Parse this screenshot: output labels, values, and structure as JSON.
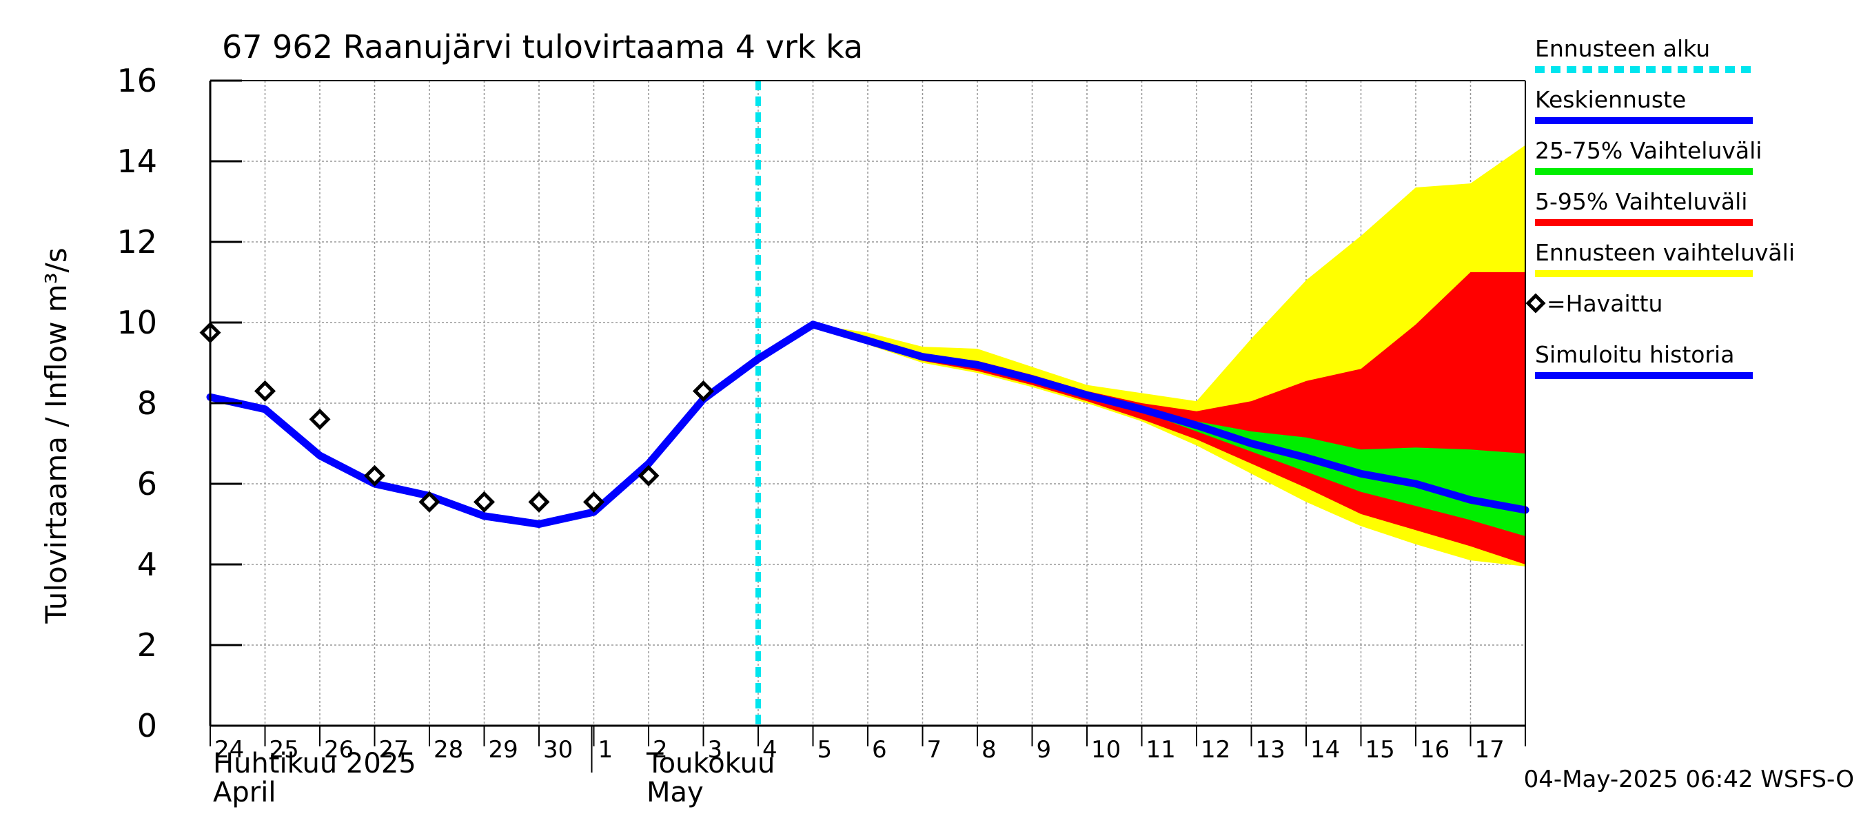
{
  "chart_data": {
    "type": "area",
    "title": "67 962 Raanujärvi tulovirtaama 4 vrk ka",
    "ylabel": "Tulovirtaama / Inflow   m³/s",
    "ylim": [
      0,
      16
    ],
    "yticks": [
      0,
      2,
      4,
      6,
      8,
      10,
      12,
      14,
      16
    ],
    "x_day_labels": [
      "24",
      "25",
      "26",
      "27",
      "28",
      "29",
      "30",
      "1",
      "2",
      "3",
      "4",
      "5",
      "6",
      "7",
      "8",
      "9",
      "10",
      "11",
      "12",
      "13",
      "14",
      "15",
      "16",
      "17"
    ],
    "month_labels": [
      {
        "line1": "Huhtikuu  2025",
        "line2": "April"
      },
      {
        "line1": "Toukokuu",
        "line2": "May"
      }
    ],
    "forecast_start_day_index": 10,
    "observed": [
      {
        "d": 0,
        "v": 9.75
      },
      {
        "d": 1,
        "v": 8.3
      },
      {
        "d": 2,
        "v": 7.6
      },
      {
        "d": 3,
        "v": 6.2
      },
      {
        "d": 4,
        "v": 5.55
      },
      {
        "d": 5,
        "v": 5.55
      },
      {
        "d": 6,
        "v": 5.55
      },
      {
        "d": 7,
        "v": 5.55
      },
      {
        "d": 8,
        "v": 6.2
      },
      {
        "d": 9,
        "v": 8.3
      }
    ],
    "simulated_history": [
      {
        "d": 0,
        "v": 8.15
      },
      {
        "d": 1,
        "v": 7.85
      },
      {
        "d": 2,
        "v": 6.7
      },
      {
        "d": 3,
        "v": 6.0
      },
      {
        "d": 4,
        "v": 5.7
      },
      {
        "d": 5,
        "v": 5.2
      },
      {
        "d": 6,
        "v": 5.0
      },
      {
        "d": 7,
        "v": 5.3
      },
      {
        "d": 8,
        "v": 6.5
      },
      {
        "d": 9,
        "v": 8.1
      },
      {
        "d": 10,
        "v": 9.1
      },
      {
        "d": 11,
        "v": 9.95
      }
    ],
    "forecast_days": [
      11,
      12,
      13,
      14,
      15,
      16,
      17,
      18,
      19,
      20,
      21,
      22,
      23,
      24
    ],
    "median_forecast": [
      9.95,
      9.55,
      9.15,
      8.95,
      8.6,
      8.2,
      7.85,
      7.45,
      7.0,
      6.65,
      6.25,
      6.0,
      5.6,
      5.35
    ],
    "range_full": {
      "low": [
        9.95,
        9.45,
        9.0,
        8.75,
        8.4,
        8.0,
        7.55,
        6.95,
        6.25,
        5.55,
        4.95,
        4.5,
        4.1,
        3.95
      ],
      "high": [
        9.95,
        9.75,
        9.4,
        9.35,
        8.9,
        8.45,
        8.25,
        8.05,
        9.6,
        11.05,
        12.15,
        13.35,
        13.45,
        14.4
      ]
    },
    "range_5_95": {
      "low": [
        9.95,
        9.5,
        9.05,
        8.8,
        8.45,
        8.05,
        7.6,
        7.1,
        6.5,
        5.9,
        5.25,
        4.85,
        4.45,
        4.0
      ],
      "high": [
        9.95,
        9.6,
        9.2,
        9.05,
        8.7,
        8.3,
        8.0,
        7.8,
        8.05,
        8.55,
        8.85,
        9.95,
        11.25,
        11.25
      ]
    },
    "range_25_75": {
      "low": [
        9.95,
        9.55,
        9.15,
        8.95,
        8.6,
        8.2,
        7.8,
        7.3,
        6.8,
        6.3,
        5.8,
        5.45,
        5.1,
        4.7
      ],
      "high": [
        9.95,
        9.55,
        9.15,
        8.95,
        8.6,
        8.2,
        7.85,
        7.55,
        7.3,
        7.15,
        6.85,
        6.9,
        6.85,
        6.75
      ]
    },
    "legend": [
      {
        "label": "Ennusteen alku",
        "color": "#00e5ee",
        "style": "dashed"
      },
      {
        "label": "Keskiennuste",
        "color": "#0000ff",
        "style": "line"
      },
      {
        "label": "25-75% Vaihteluväli",
        "color": "#00ee00",
        "style": "line"
      },
      {
        "label": "5-95% Vaihteluväli",
        "color": "#ff0000",
        "style": "line"
      },
      {
        "label": "Ennusteen vaihteluväli",
        "color": "#ffff00",
        "style": "line"
      },
      {
        "label": "=Havaittu",
        "color": "#000000",
        "style": "marker"
      },
      {
        "label": "Simuloitu historia",
        "color": "#0000ff",
        "style": "line"
      }
    ],
    "timestamp": "04-May-2025 06:42 WSFS-O",
    "colors": {
      "yellow": "#ffff00",
      "red": "#ff0000",
      "green": "#00ee00",
      "blue": "#0000ff",
      "cyan": "#00e5ee",
      "grid": "#999999"
    }
  }
}
